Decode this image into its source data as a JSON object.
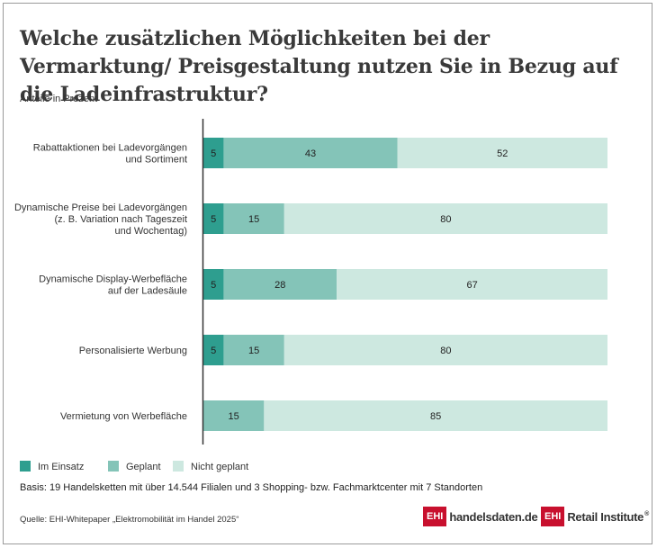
{
  "title": "Welche zusätzlichen Möglichkeiten bei der Vermarktung/ Preisgestaltung nutzen Sie in Bezug auf die Ladeinfrastruktur?",
  "subtitle": "Anteile in Prozent",
  "colors": {
    "im_einsatz": "#2e9e8f",
    "geplant": "#84c4b8",
    "nicht_geplant": "#cde8e0",
    "axis": "#333333",
    "brand": "#c8102e"
  },
  "chart_data": {
    "type": "bar",
    "orientation": "horizontal",
    "stacked": true,
    "categories": [
      [
        "Rabattaktionen bei Ladevorgängen",
        "und Sortiment"
      ],
      [
        "Dynamische Preise bei Ladevorgängen",
        "(z. B. Variation nach Tageszeit",
        "und Wochentag)"
      ],
      [
        "Dynamische Display-Werbefläche",
        "auf der Ladesäule"
      ],
      [
        "Personalisierte Werbung"
      ],
      [
        "Vermietung von Werbefläche"
      ]
    ],
    "series": [
      {
        "name": "Im Einsatz",
        "values": [
          5,
          5,
          5,
          5,
          null
        ]
      },
      {
        "name": "Geplant",
        "values": [
          43,
          15,
          28,
          15,
          15
        ]
      },
      {
        "name": "Nicht geplant",
        "values": [
          52,
          80,
          67,
          80,
          85
        ]
      }
    ],
    "xlim": [
      0,
      100
    ],
    "grid": false,
    "legend_position": "bottom-left"
  },
  "basis": "Basis: 19 Handelsketten mit über 14.544 Filialen und 3 Shopping- bzw. Fachmarktcenter mit 7 Standorten",
  "source": "Quelle: EHI-Whitepaper „Elektromobilität im Handel 2025“",
  "logos": {
    "handelsdaten": {
      "box": "EHI",
      "text": "handelsdaten.de"
    },
    "retail_institute": {
      "box": "EHI",
      "text": "Retail Institute",
      "mark": "®"
    }
  }
}
